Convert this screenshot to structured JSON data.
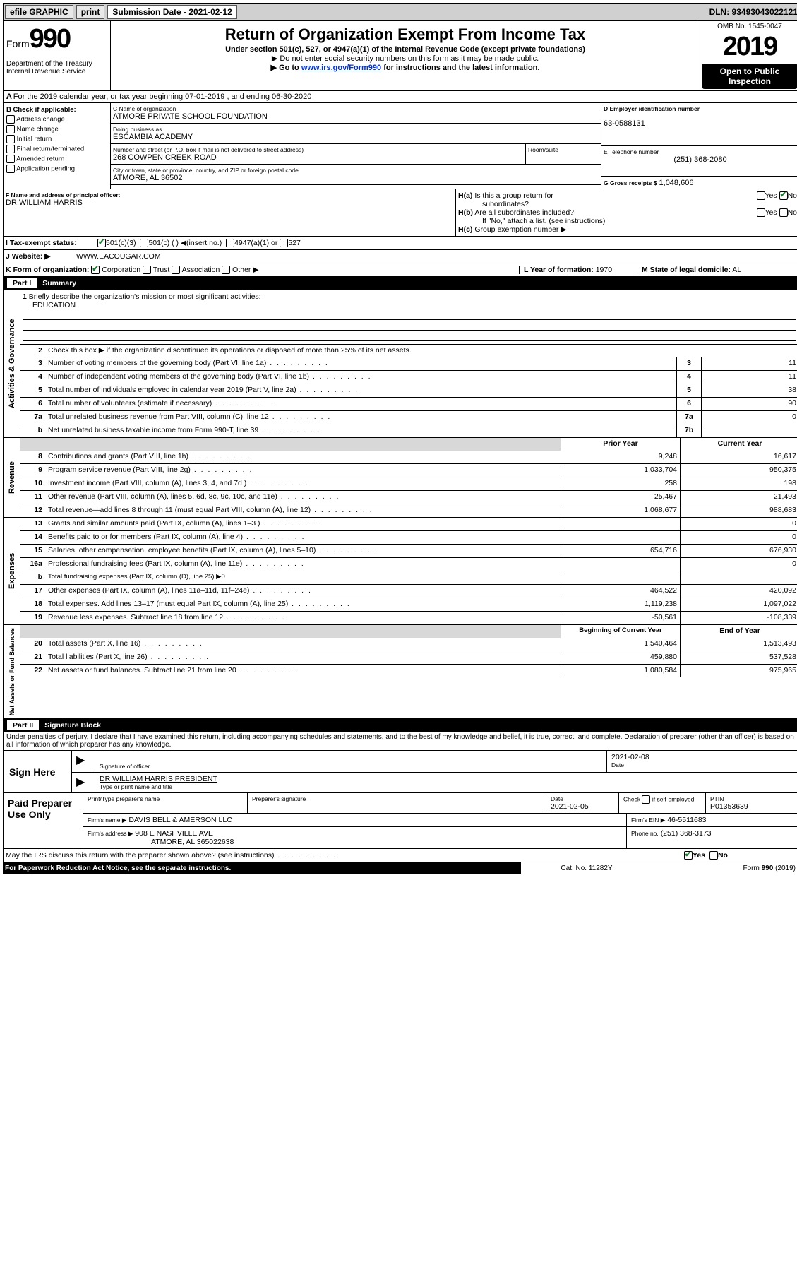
{
  "topbar": {
    "efile": "efile GRAPHIC",
    "print": "print",
    "submission_label": "Submission Date - 2021-02-12",
    "dln": "DLN: 93493043022121"
  },
  "header": {
    "form_prefix": "Form",
    "form_number": "990",
    "dept": "Department of the Treasury\nInternal Revenue Service",
    "title": "Return of Organization Exempt From Income Tax",
    "sub1": "Under section 501(c), 527, or 4947(a)(1) of the Internal Revenue Code (except private foundations)",
    "sub2": "▶ Do not enter social security numbers on this form as it may be made public.",
    "sub3_pre": "▶ Go to ",
    "sub3_link": "www.irs.gov/Form990",
    "sub3_post": " for instructions and the latest information.",
    "omb": "OMB No. 1545-0047",
    "year": "2019",
    "open": "Open to Public Inspection"
  },
  "row_a": "A For the 2019 calendar year, or tax year beginning 07-01-2019    , and ending 06-30-2020",
  "col_b": {
    "header": "B Check if applicable:",
    "items": [
      "Address change",
      "Name change",
      "Initial return",
      "Final return/terminated",
      "Amended return",
      "Application pending"
    ]
  },
  "col_c": {
    "name_label": "C Name of organization",
    "name": "ATMORE PRIVATE SCHOOL FOUNDATION",
    "dba_label": "Doing business as",
    "dba": "ESCAMBIA ACADEMY",
    "addr_label": "Number and street (or P.O. box if mail is not delivered to street address)",
    "addr": "268 COWPEN CREEK ROAD",
    "room_label": "Room/suite",
    "city_label": "City or town, state or province, country, and ZIP or foreign postal code",
    "city": "ATMORE, AL  36502",
    "officer_label": "F  Name and address of principal officer:",
    "officer": "DR WILLIAM HARRIS"
  },
  "col_d": {
    "ein_label": "D Employer identification number",
    "ein": "63-0588131",
    "phone_label": "E Telephone number",
    "phone": "(251) 368-2080",
    "receipts_label": "G Gross receipts $",
    "receipts": "1,048,606"
  },
  "h": {
    "a_label": "H(a)  Is this a group return for subordinates?",
    "a_yes": "Yes",
    "a_no": "No",
    "b_label": "H(b)  Are all subordinates included?",
    "b_note": "If \"No,\" attach a list. (see instructions)",
    "c_label": "H(c)  Group exemption number ▶"
  },
  "status": {
    "label": "I    Tax-exempt status:",
    "opts": [
      "501(c)(3)",
      "501(c) (  ) ◀(insert no.)",
      "4947(a)(1) or",
      "527"
    ]
  },
  "website": {
    "label": "J   Website: ▶",
    "value": "WWW.EACOUGAR.COM"
  },
  "k": {
    "label": "K Form of organization:",
    "opts": [
      "Corporation",
      "Trust",
      "Association",
      "Other ▶"
    ],
    "l_label": "L Year of formation:",
    "l_val": "1970",
    "m_label": "M State of legal domicile:",
    "m_val": "AL"
  },
  "part1": {
    "bar": "Part I",
    "title": "Summary",
    "mission_label": "1  Briefly describe the organization's mission or most significant activities:",
    "mission": "EDUCATION",
    "line2": "Check this box ▶        if the organization discontinued its operations or disposed of more than 25% of its net assets.",
    "lines_gov": [
      {
        "n": "3",
        "d": "Number of voting members of the governing body (Part VI, line 1a)",
        "r": "3",
        "v": "11"
      },
      {
        "n": "4",
        "d": "Number of independent voting members of the governing body (Part VI, line 1b)",
        "r": "4",
        "v": "11"
      },
      {
        "n": "5",
        "d": "Total number of individuals employed in calendar year 2019 (Part V, line 2a)",
        "r": "5",
        "v": "38"
      },
      {
        "n": "6",
        "d": "Total number of volunteers (estimate if necessary)",
        "r": "6",
        "v": "90"
      },
      {
        "n": "7a",
        "d": "Total unrelated business revenue from Part VIII, column (C), line 12",
        "r": "7a",
        "v": "0"
      },
      {
        "n": "b",
        "d": "Net unrelated business taxable income from Form 990-T, line 39",
        "r": "7b",
        "v": ""
      }
    ],
    "hdr_prior": "Prior Year",
    "hdr_current": "Current Year",
    "lines_rev": [
      {
        "n": "8",
        "d": "Contributions and grants (Part VIII, line 1h)",
        "p": "9,248",
        "c": "16,617"
      },
      {
        "n": "9",
        "d": "Program service revenue (Part VIII, line 2g)",
        "p": "1,033,704",
        "c": "950,375"
      },
      {
        "n": "10",
        "d": "Investment income (Part VIII, column (A), lines 3, 4, and 7d )",
        "p": "258",
        "c": "198"
      },
      {
        "n": "11",
        "d": "Other revenue (Part VIII, column (A), lines 5, 6d, 8c, 9c, 10c, and 11e)",
        "p": "25,467",
        "c": "21,493"
      },
      {
        "n": "12",
        "d": "Total revenue—add lines 8 through 11 (must equal Part VIII, column (A), line 12)",
        "p": "1,068,677",
        "c": "988,683"
      }
    ],
    "lines_exp": [
      {
        "n": "13",
        "d": "Grants and similar amounts paid (Part IX, column (A), lines 1–3 )",
        "p": "",
        "c": "0"
      },
      {
        "n": "14",
        "d": "Benefits paid to or for members (Part IX, column (A), line 4)",
        "p": "",
        "c": "0"
      },
      {
        "n": "15",
        "d": "Salaries, other compensation, employee benefits (Part IX, column (A), lines 5–10)",
        "p": "654,716",
        "c": "676,930"
      },
      {
        "n": "16a",
        "d": "Professional fundraising fees (Part IX, column (A), line 11e)",
        "p": "",
        "c": "0"
      },
      {
        "n": "b",
        "d": "Total fundraising expenses (Part IX, column (D), line 25) ▶0",
        "p": "grey",
        "c": "grey"
      },
      {
        "n": "17",
        "d": "Other expenses (Part IX, column (A), lines 11a–11d, 11f–24e)",
        "p": "464,522",
        "c": "420,092"
      },
      {
        "n": "18",
        "d": "Total expenses. Add lines 13–17 (must equal Part IX, column (A), line 25)",
        "p": "1,119,238",
        "c": "1,097,022"
      },
      {
        "n": "19",
        "d": "Revenue less expenses. Subtract line 18 from line 12",
        "p": "-50,561",
        "c": "-108,339"
      }
    ],
    "hdr_begin": "Beginning of Current Year",
    "hdr_end": "End of Year",
    "lines_na": [
      {
        "n": "20",
        "d": "Total assets (Part X, line 16)",
        "p": "1,540,464",
        "c": "1,513,493"
      },
      {
        "n": "21",
        "d": "Total liabilities (Part X, line 26)",
        "p": "459,880",
        "c": "537,528"
      },
      {
        "n": "22",
        "d": "Net assets or fund balances. Subtract line 21 from line 20",
        "p": "1,080,584",
        "c": "975,965"
      }
    ]
  },
  "part2": {
    "bar": "Part II",
    "title": "Signature Block",
    "decl": "Under penalties of perjury, I declare that I have examined this return, including accompanying schedules and statements, and to the best of my knowledge and belief, it is true, correct, and complete. Declaration of preparer (other than officer) is based on all information of which preparer has any knowledge.",
    "sign_here": "Sign Here",
    "sig_label": "Signature of officer",
    "sig_date": "2021-02-08",
    "date_label": "Date",
    "name_label": "Type or print name and title",
    "name_val": "DR WILLIAM HARRIS  PRESIDENT"
  },
  "paid": {
    "label": "Paid Preparer Use Only",
    "h1": "Print/Type preparer's name",
    "h2": "Preparer's signature",
    "h3": "Date",
    "h3v": "2021-02-05",
    "h4": "Check          if self-employed",
    "h5": "PTIN",
    "h5v": "P01353639",
    "firm_name_label": "Firm's name      ▶",
    "firm_name": "DAVIS BELL & AMERSON LLC",
    "firm_ein_label": "Firm's EIN ▶",
    "firm_ein": "46-5511683",
    "firm_addr_label": "Firm's address ▶",
    "firm_addr": "908 E NASHVILLE AVE",
    "firm_addr2": "ATMORE, AL  365022638",
    "phone_label": "Phone no.",
    "phone": "(251) 368-3173"
  },
  "discuss": {
    "text": "May the IRS discuss this return with the preparer shown above? (see instructions)",
    "yes": "Yes",
    "no": "No"
  },
  "footer": {
    "left": "For Paperwork Reduction Act Notice, see the separate instructions.",
    "mid": "Cat. No. 11282Y",
    "right": "Form 990 (2019)"
  },
  "section_labels": {
    "gov": "Activities & Governance",
    "rev": "Revenue",
    "exp": "Expenses",
    "na": "Net Assets or Fund Balances"
  }
}
